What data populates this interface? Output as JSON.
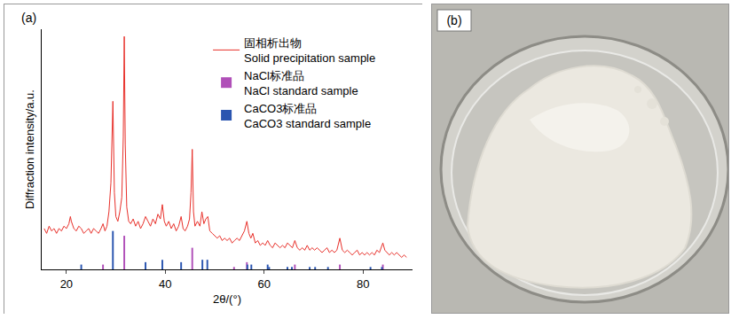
{
  "chart_data": {
    "type": "line",
    "x_label": "2θ/(°)",
    "y_label": "Diffraction intensity/a.u.",
    "annotations": [
      "(a)"
    ],
    "xlim": [
      15,
      90
    ],
    "xticks": [
      20,
      40,
      60,
      80
    ],
    "ylim": [
      0,
      100
    ],
    "tick_labels": "x",
    "grid": false,
    "legend": "top",
    "series": [
      {
        "name": "固相析出物\nSolid precipitation sample",
        "type": "line",
        "color": "#e8302a",
        "x": [
          15.5,
          16,
          16.5,
          17,
          17.5,
          18,
          18.5,
          19,
          19.5,
          20,
          20.5,
          20.8,
          21,
          21.5,
          22,
          22.5,
          23,
          23.5,
          24,
          24.5,
          25,
          25.5,
          26,
          26.5,
          27,
          27.4,
          27.8,
          28.2,
          28.6,
          29.0,
          29.4,
          29.7,
          30.0,
          30.4,
          30.8,
          31.2,
          31.5,
          31.7,
          31.9,
          32.2,
          32.6,
          33,
          33.5,
          34,
          34.5,
          35,
          35.5,
          36,
          36.5,
          37,
          37.5,
          38,
          38.5,
          39,
          39.4,
          39.8,
          40.2,
          40.7,
          41.2,
          41.7,
          42.2,
          42.7,
          43.2,
          43.6,
          44,
          44.5,
          44.9,
          45.2,
          45.45,
          45.7,
          46,
          46.5,
          47,
          47.4,
          47.8,
          48.2,
          48.6,
          49,
          49.5,
          50,
          50.5,
          51,
          51.5,
          52,
          52.5,
          53,
          53.5,
          54,
          54.5,
          55,
          55.5,
          56,
          56.5,
          56.9,
          57.3,
          57.7,
          58.2,
          58.7,
          59.2,
          59.7,
          60.2,
          60.7,
          61.2,
          61.7,
          62.2,
          62.7,
          63.2,
          63.7,
          64.2,
          64.7,
          65.2,
          65.7,
          66.2,
          66.7,
          67.2,
          67.7,
          68.2,
          68.7,
          69.2,
          69.7,
          70.2,
          70.7,
          71.2,
          71.7,
          72.2,
          72.7,
          73.2,
          73.7,
          74.2,
          74.7,
          75.3,
          75.8,
          76.3,
          76.8,
          77.3,
          77.8,
          78.3,
          78.8,
          79.3,
          79.8,
          80.3,
          80.8,
          81.3,
          81.8,
          82.3,
          82.8,
          83.3,
          83.7,
          84.0,
          84.4,
          84.8,
          85.3,
          85.8,
          86.3,
          86.8,
          87.3,
          87.8,
          88.3,
          88.8
        ],
        "values": [
          17,
          15,
          18,
          16,
          17,
          15,
          17,
          16,
          18,
          17,
          19,
          22,
          20,
          17,
          16,
          18,
          17,
          15,
          16,
          17,
          15,
          17,
          16,
          15,
          17,
          19,
          16,
          18,
          24,
          36,
          70,
          32,
          22,
          20,
          24,
          30,
          55,
          97,
          52,
          26,
          20,
          19,
          21,
          18,
          20,
          17,
          19,
          22,
          20,
          18,
          21,
          19,
          23,
          21,
          27,
          20,
          18,
          20,
          17,
          19,
          16,
          18,
          22,
          17,
          16,
          18,
          21,
          32,
          50,
          24,
          18,
          20,
          18,
          24,
          19,
          21,
          22,
          16,
          15,
          14,
          13,
          14,
          12,
          13,
          12,
          13,
          11,
          12,
          13,
          12,
          14,
          16,
          20,
          15,
          13,
          15,
          11,
          12,
          10,
          11,
          10,
          12,
          10,
          9,
          11,
          10,
          9,
          10,
          9,
          11,
          10,
          9,
          12,
          9,
          8,
          9,
          8,
          10,
          8,
          9,
          8,
          9,
          8,
          7,
          8,
          9,
          7,
          8,
          7,
          8,
          13,
          8,
          7,
          8,
          7,
          6,
          7,
          8,
          6,
          7,
          6,
          7,
          6,
          7,
          6,
          8,
          7,
          9,
          11,
          8,
          7,
          6,
          7,
          6,
          7,
          6,
          5,
          6,
          5
        ]
      },
      {
        "name": "NaCl标准品\nNaCl standard sample",
        "type": "bar",
        "color": "#b04fb8",
        "x": [
          27.4,
          31.7,
          45.45,
          53.9,
          56.5,
          66.2,
          75.3,
          84.0
        ],
        "values": [
          2,
          14,
          9,
          1,
          3,
          2,
          2,
          2
        ]
      },
      {
        "name": "CaCO3标准品\nCaCO3 standard sample",
        "type": "bar",
        "color": "#2a55b0",
        "x": [
          23.0,
          29.4,
          36.0,
          39.4,
          43.2,
          47.5,
          48.5,
          56.6,
          57.4,
          60.7,
          61.0,
          64.7,
          65.6,
          69.2,
          70.3,
          72.9,
          81.5,
          83.8
        ],
        "values": [
          2,
          16,
          3,
          4,
          3,
          4,
          4,
          2,
          2,
          2,
          1,
          1,
          1,
          1,
          1,
          1,
          1,
          1
        ]
      }
    ]
  },
  "photo": {
    "label": "(b)"
  }
}
